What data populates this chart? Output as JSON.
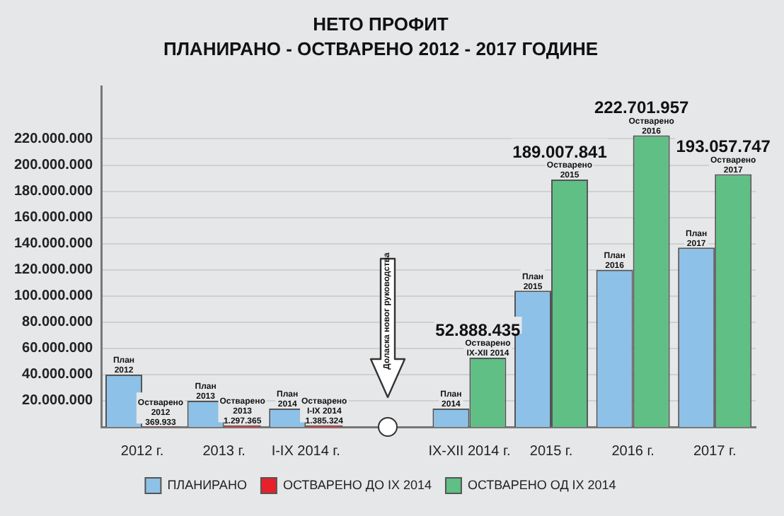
{
  "chart_data": {
    "type": "bar",
    "title": "НЕТО ПРОФИТ",
    "subtitle": "ПЛАНИРАНО - ОСТВАРЕНО 2012 - 2017 ГОДИНЕ",
    "categories": [
      "2012 г.",
      "2013 г.",
      "I-IX 2014 г.",
      null,
      "IX-XII 2014 г.",
      "2015 г.",
      "2016 г.",
      "2017 г."
    ],
    "series": [
      {
        "name": "ПЛАНИРАНО",
        "color": "#8dc1e8",
        "values": [
          40000000,
          20000000,
          14000000,
          null,
          14000000,
          104000000,
          120000000,
          137000000
        ],
        "value_labels": [
          "План\n2012",
          "План\n2013",
          "План\n2014",
          null,
          "План\n2014",
          "План\n2015",
          "План\n2016",
          "План\n2017"
        ]
      },
      {
        "name": "ОСТВАРЕНО ДО IX 2014",
        "color": "#e8202a",
        "values": [
          369933,
          1297365,
          1385324,
          null,
          null,
          null,
          null,
          null
        ],
        "value_labels": [
          "Остварено\n2012\n369.933",
          "Остварено\n2013\n1.297.365",
          "Остварено\nI-IX 2014\n1.385.324",
          null,
          null,
          null,
          null,
          null
        ]
      },
      {
        "name": "ОСТВАРЕНО ОД IX 2014",
        "color": "#5fbf85",
        "values": [
          null,
          null,
          null,
          null,
          52888435,
          189007841,
          222701957,
          193057747
        ],
        "value_labels": [
          null,
          null,
          null,
          null,
          "Остварено\nIX-XII 2014",
          "Остварено\n2015",
          "Остварено\n2016",
          "Остварено\n2017"
        ]
      }
    ],
    "ylim": [
      0,
      260000000
    ],
    "yticks": [
      {
        "value": 20000000,
        "label": "20.000.000"
      },
      {
        "value": 40000000,
        "label": "40.000.000"
      },
      {
        "value": 60000000,
        "label": "60.000.000"
      },
      {
        "value": 80000000,
        "label": "80.000.000"
      },
      {
        "value": 100000000,
        "label": "100.000.000"
      },
      {
        "value": 120000000,
        "label": "120.000.000"
      },
      {
        "value": 140000000,
        "label": "140.000.000"
      },
      {
        "value": 160000000,
        "label": "160.000.000"
      },
      {
        "value": 180000000,
        "label": "180.000.000"
      },
      {
        "value": 200000000,
        "label": "200.000.000"
      },
      {
        "value": 220000000,
        "label": "220.000.000"
      }
    ],
    "grid": "y",
    "legend": "bottom",
    "annotations": [
      {
        "text": "52.888.435",
        "x": "IX-XII 2014 г.",
        "y": 52888435
      },
      {
        "text": "189.007.841",
        "x": "2015 г.",
        "y": 189007841
      },
      {
        "text": "222.701.957",
        "x": "2016 г.",
        "y": 222701957
      },
      {
        "text": "193.057.747",
        "x": "2017 г.",
        "y": 193057747
      },
      "Доласка новог руководства"
    ]
  }
}
